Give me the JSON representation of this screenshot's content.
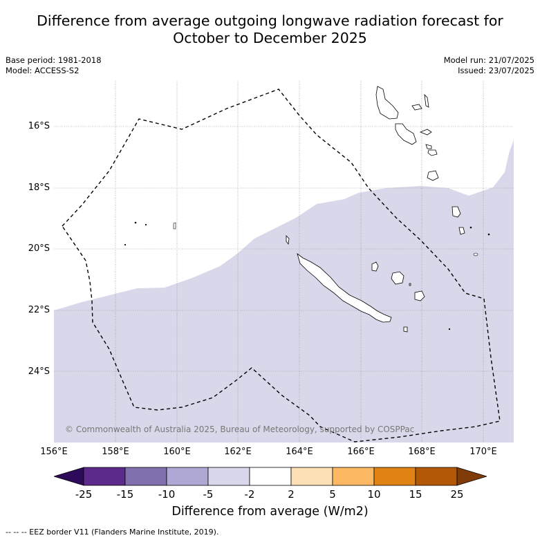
{
  "title": "Difference from average outgoing longwave radiation forecast for October to December 2025",
  "title_lines": [
    "Difference from average outgoing longwave radiation forecast for",
    "October to December 2025"
  ],
  "base_period": "Base period: 1981-2018",
  "model": "Model: ACCESS-S2",
  "model_run": "Model run: 21/07/2025",
  "issued": "Issued: 23/07/2025",
  "copyright": "© Commonwealth of Australia 2025, Bureau of Meteorology, supported by COSPPac",
  "lat_ticks": [
    "16°S",
    "18°S",
    "20°S",
    "22°S",
    "24°S"
  ],
  "lon_ticks": [
    "156°E",
    "158°E",
    "160°E",
    "162°E",
    "164°E",
    "166°E",
    "168°E",
    "170°E"
  ],
  "colorbar": {
    "labels": [
      "-25",
      "-15",
      "-10",
      "-5",
      "-2",
      "2",
      "5",
      "10",
      "15",
      "25"
    ],
    "colors": [
      "#2d0a5a",
      "#5b2a8a",
      "#8170ae",
      "#b0a8d4",
      "#d8d8ea",
      "#ffffff",
      "#fee0b6",
      "#fdb863",
      "#e08214",
      "#b35806",
      "#7f3b08"
    ],
    "title": "Difference from average (W/m2)"
  },
  "footnote": "--  --  -- EEZ border V11 (Flanders Marine Institute, 2019).",
  "anomaly_fill_color": "#d8d8ea"
}
